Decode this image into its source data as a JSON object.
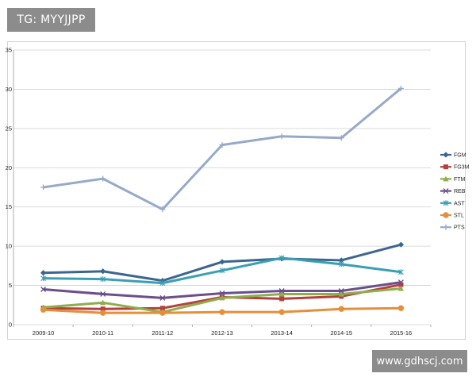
{
  "watermark_top": "TG: MYYJJPP",
  "watermark_bottom": "www.gdhscj.com",
  "chart_data": {
    "type": "line",
    "title": "",
    "xlabel": "",
    "ylabel": "",
    "categories": [
      "2009-10",
      "2010-11",
      "2011-12",
      "2012-13",
      "2013-14",
      "2014-15",
      "2015-16"
    ],
    "ylim": [
      0,
      35
    ],
    "yticks": [
      0,
      5,
      10,
      15,
      20,
      25,
      30,
      35
    ],
    "grid": "horizontal",
    "legend": "right",
    "series": [
      {
        "name": "FGM",
        "color": "#3c6592",
        "marker": "diamond",
        "values": [
          6.6,
          6.8,
          5.6,
          8.0,
          8.4,
          8.2,
          10.2
        ]
      },
      {
        "name": "FG3M",
        "color": "#b4413e",
        "marker": "square",
        "values": [
          2.1,
          2.0,
          2.1,
          3.5,
          3.3,
          3.6,
          5.1
        ]
      },
      {
        "name": "FTM",
        "color": "#8fae4b",
        "marker": "triangle",
        "values": [
          2.2,
          2.8,
          1.6,
          3.4,
          3.9,
          3.9,
          4.6
        ]
      },
      {
        "name": "REB",
        "color": "#6b4f8c",
        "marker": "x",
        "values": [
          4.5,
          3.9,
          3.4,
          4.0,
          4.3,
          4.3,
          5.4
        ]
      },
      {
        "name": "AST",
        "color": "#3a9fb3",
        "marker": "star",
        "values": [
          5.9,
          5.8,
          5.3,
          6.9,
          8.5,
          7.7,
          6.7
        ]
      },
      {
        "name": "STL",
        "color": "#e58f3a",
        "marker": "circle",
        "values": [
          1.9,
          1.5,
          1.5,
          1.6,
          1.6,
          2.0,
          2.1
        ]
      },
      {
        "name": "PTS",
        "color": "#97a9c9",
        "marker": "plus",
        "values": [
          17.5,
          18.6,
          14.7,
          22.9,
          24.0,
          23.8,
          30.1
        ]
      }
    ]
  }
}
